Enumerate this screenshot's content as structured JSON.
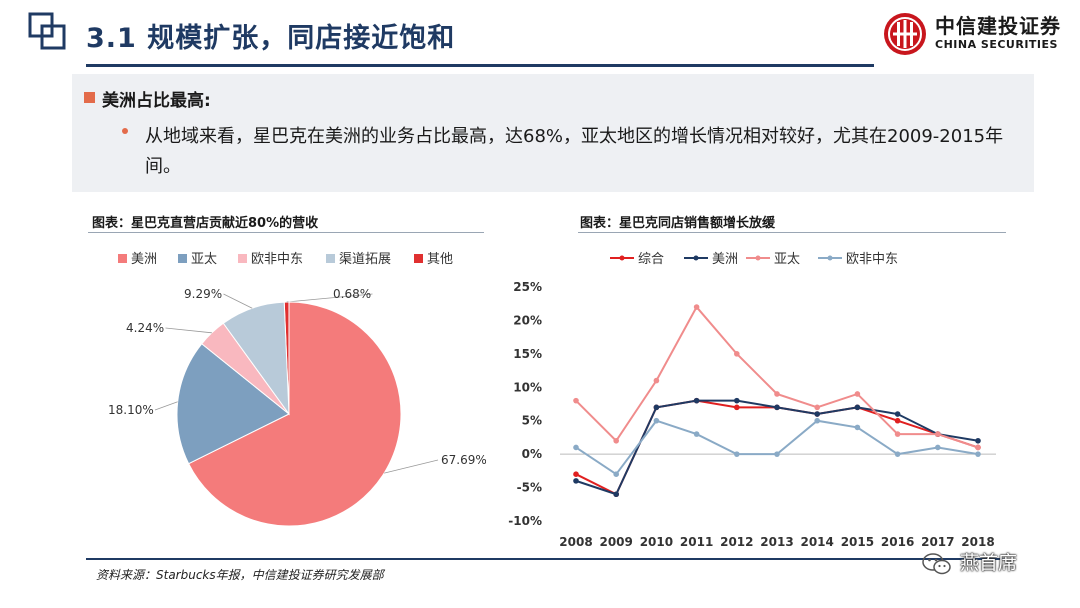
{
  "header": {
    "title": "3.1 规模扩张，同店接近饱和",
    "brand_cn": "中信建投证券",
    "brand_en": "CHINA SECURITIES"
  },
  "summary": {
    "heading": "美洲占比最高:",
    "bullet": "从地域来看，星巴克在美洲的业务占比最高，达68%，亚太地区的增长情况相对较好，尤其在2009-2015年间。"
  },
  "footer": {
    "source": "资料来源：Starbucks年报，中信建投证券研究发展部",
    "watermark": "燕首席"
  },
  "colors": {
    "title_blue": "#1f3a63",
    "americas": "#f47b7b",
    "asia_pacific": "#7d9fbf",
    "emea": "#f9b8bf",
    "channel": "#b8cad9",
    "other": "#e03030",
    "composite": "#e02020",
    "americas_line": "#1f3a63",
    "asia_pacific_line": "#f08c8c",
    "emea_line": "#8aaac6"
  },
  "chart_data": [
    {
      "type": "pie",
      "title": "图表：星巴克直营店贡献近80%的营收",
      "legend_position": "top",
      "categories": [
        "美洲",
        "亚太",
        "欧非中东",
        "渠道拓展",
        "其他"
      ],
      "values": [
        67.69,
        18.1,
        4.24,
        9.29,
        0.68
      ],
      "data_labels": [
        "67.69%",
        "18.10%",
        "4.24%",
        "9.29%",
        "0.68%"
      ],
      "colors": [
        "#f47b7b",
        "#7d9fbf",
        "#f9b8bf",
        "#b8cad9",
        "#e03030"
      ]
    },
    {
      "type": "line",
      "title": "图表：星巴克同店销售额增长放缓",
      "legend_position": "top",
      "x": [
        "2008",
        "2009",
        "2010",
        "2011",
        "2012",
        "2013",
        "2014",
        "2015",
        "2016",
        "2017",
        "2018"
      ],
      "ylim": [
        -10,
        25
      ],
      "yticks": [
        "-10%",
        "-5%",
        "0%",
        "5%",
        "10%",
        "15%",
        "20%",
        "25%"
      ],
      "grid": false,
      "series": [
        {
          "name": "综合",
          "color": "#e02020",
          "values": [
            -3,
            -6,
            7,
            8,
            7,
            7,
            6,
            7,
            5,
            3,
            1
          ]
        },
        {
          "name": "美洲",
          "color": "#1f3a63",
          "values": [
            -4,
            -6,
            7,
            8,
            8,
            7,
            6,
            7,
            6,
            3,
            2
          ]
        },
        {
          "name": "亚太",
          "color": "#f08c8c",
          "values": [
            8,
            2,
            11,
            22,
            15,
            9,
            7,
            9,
            3,
            3,
            1
          ]
        },
        {
          "name": "欧非中东",
          "color": "#8aaac6",
          "values": [
            1,
            -3,
            5,
            3,
            0,
            0,
            5,
            4,
            0,
            1,
            0
          ]
        }
      ]
    }
  ]
}
